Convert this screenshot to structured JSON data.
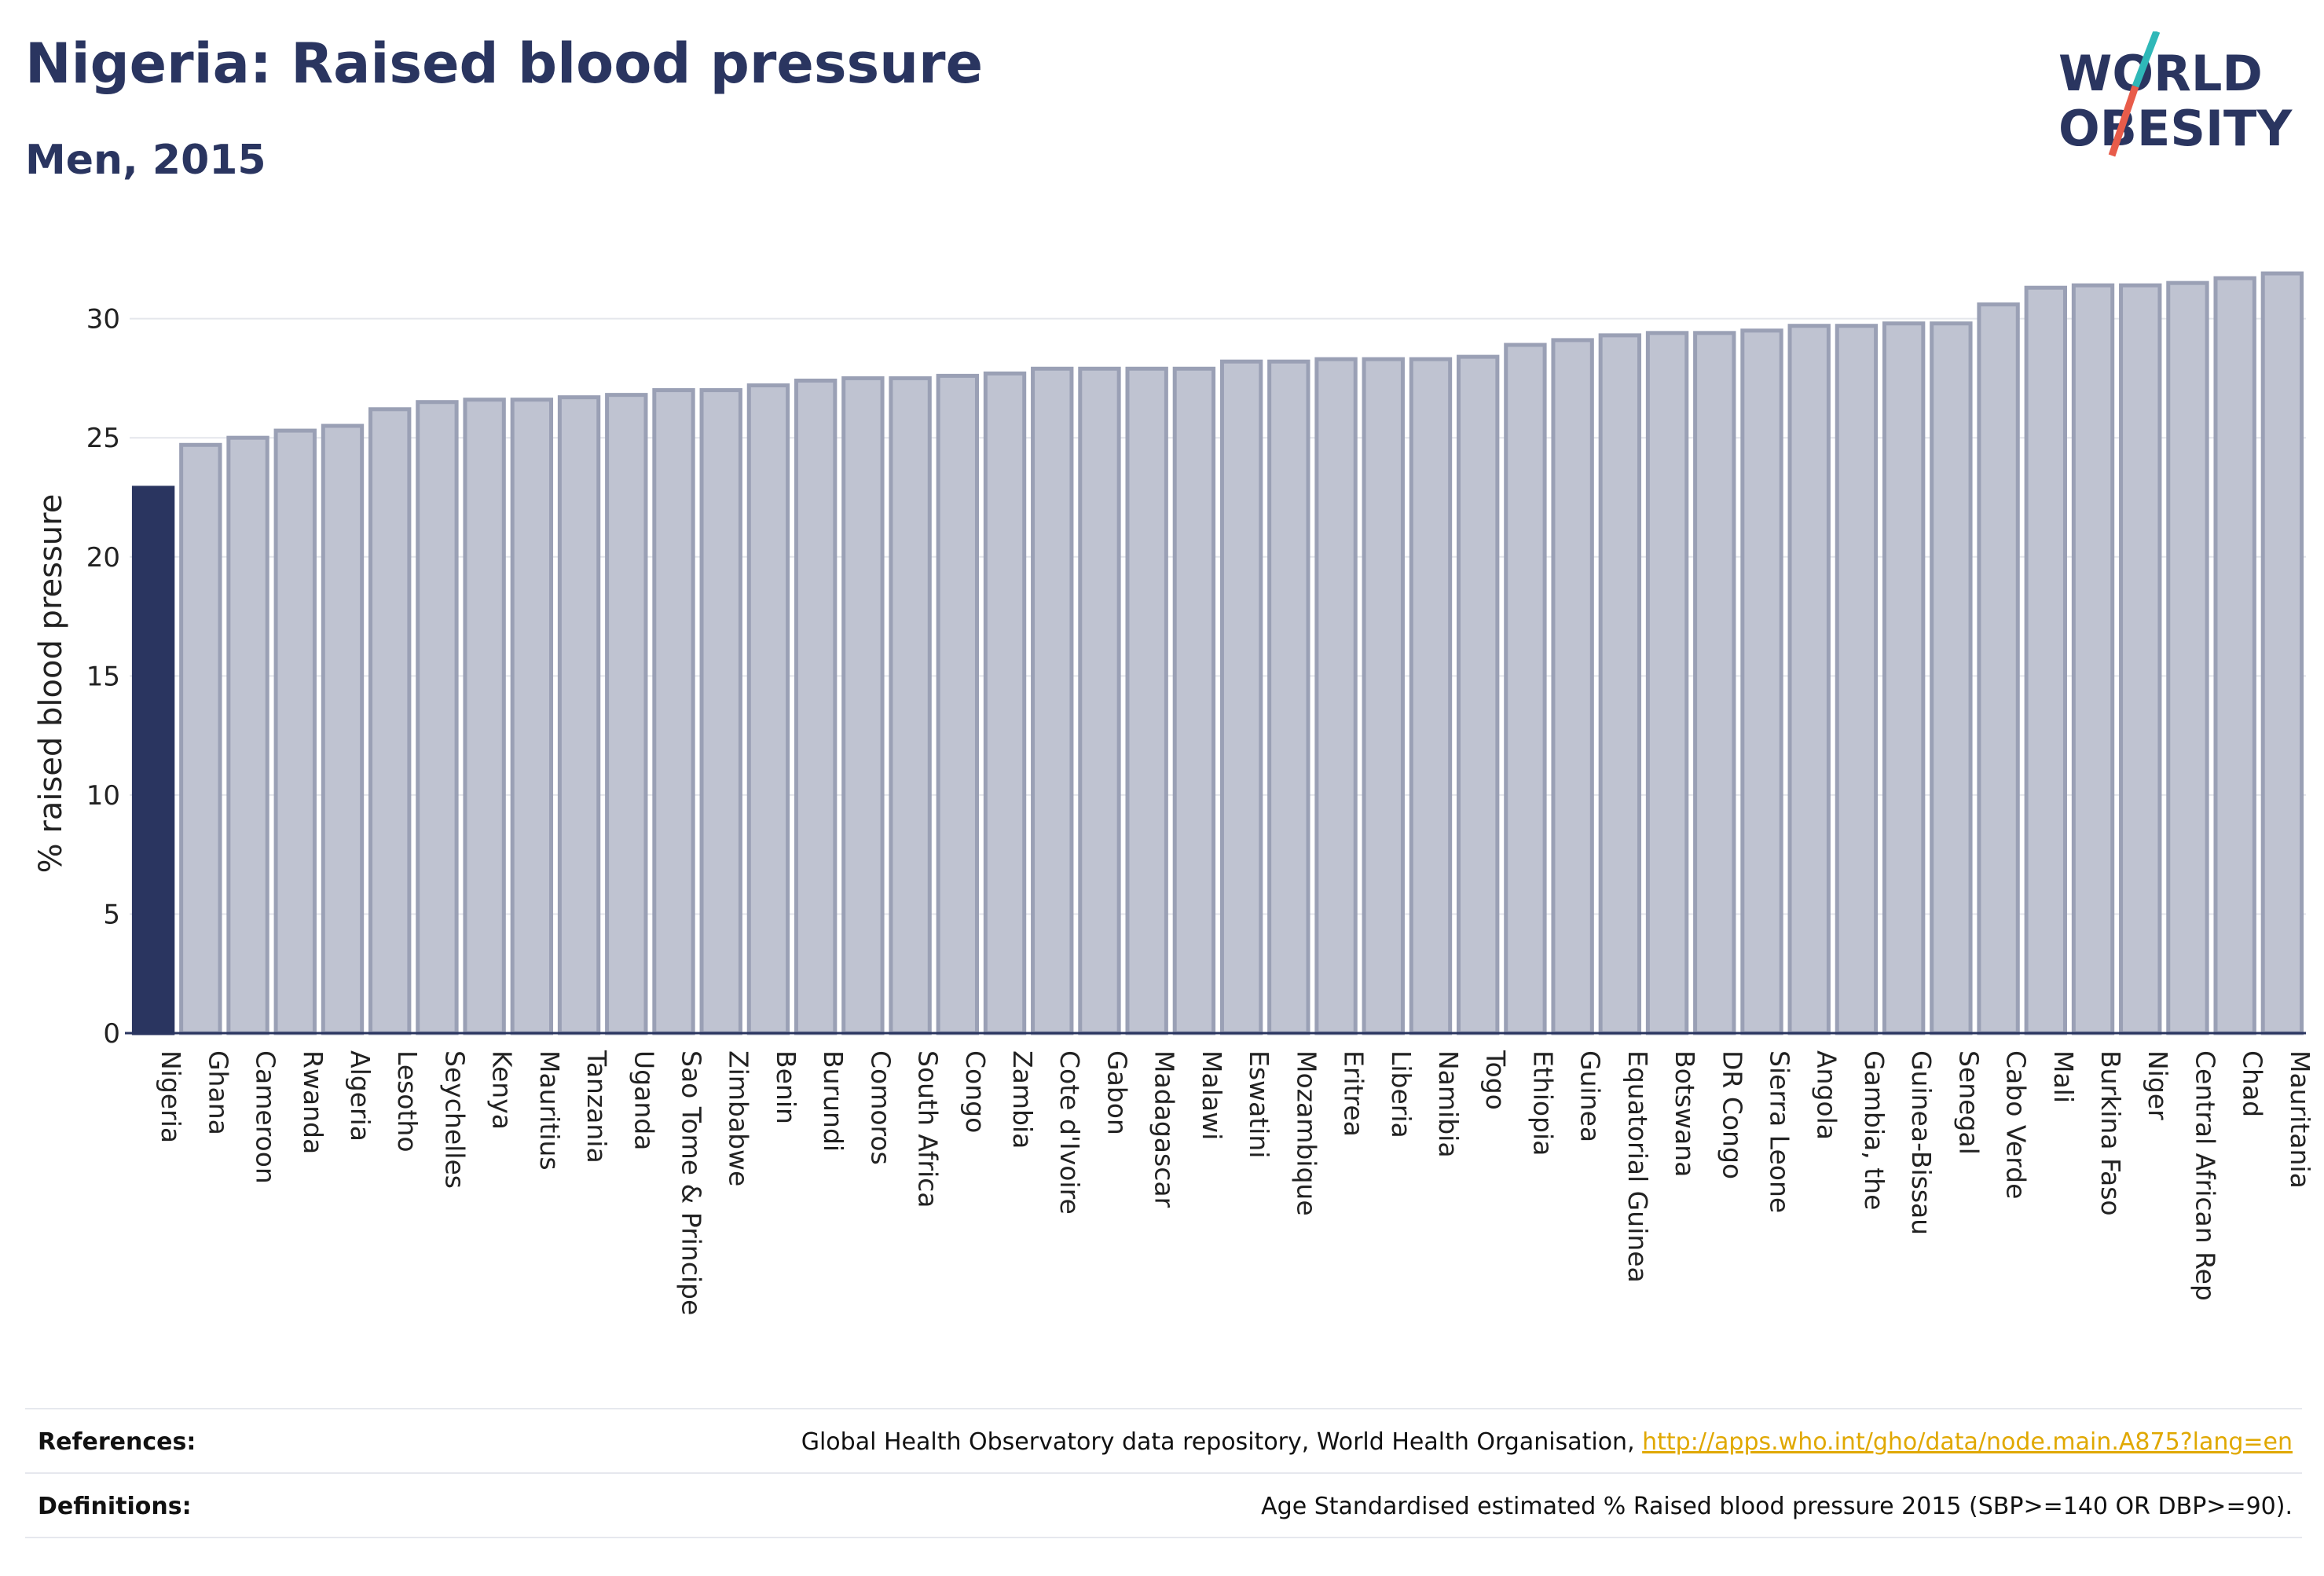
{
  "header": {
    "title": "Nigeria: Raised blood pressure",
    "subtitle": "Men, 2015",
    "logo_line1": "WORLD",
    "logo_line2": "OBESITY"
  },
  "colors": {
    "highlight_bar": "#2a3560",
    "bar_fill": "#bfc3d1",
    "bar_stroke": "#9aa0b5",
    "logo_slash_top": "#2fb8b8",
    "logo_slash_bottom": "#e85c4a",
    "link": "#e0a800"
  },
  "chart_data": {
    "type": "bar",
    "ylabel": "% raised blood pressure",
    "ylim": [
      0,
      32
    ],
    "yticks": [
      0,
      5,
      10,
      15,
      20,
      25,
      30
    ],
    "grid": true,
    "highlight": "Nigeria",
    "categories": [
      "Nigeria",
      "Ghana",
      "Cameroon",
      "Rwanda",
      "Algeria",
      "Lesotho",
      "Seychelles",
      "Kenya",
      "Mauritius",
      "Tanzania",
      "Uganda",
      "Sao Tome & Principe",
      "Zimbabwe",
      "Benin",
      "Burundi",
      "Comoros",
      "South Africa",
      "Congo",
      "Zambia",
      "Cote d'Ivoire",
      "Gabon",
      "Madagascar",
      "Malawi",
      "Eswatini",
      "Mozambique",
      "Eritrea",
      "Liberia",
      "Namibia",
      "Togo",
      "Ethiopia",
      "Guinea",
      "Equatorial Guinea",
      "Botswana",
      "DR Congo",
      "Sierra Leone",
      "Angola",
      "Gambia, the",
      "Guinea-Bissau",
      "Senegal",
      "Cabo Verde",
      "Mali",
      "Burkina Faso",
      "Niger",
      "Central African Rep",
      "Chad",
      "Mauritania"
    ],
    "values": [
      22.9,
      24.7,
      25.0,
      25.3,
      25.5,
      26.2,
      26.5,
      26.6,
      26.6,
      26.7,
      26.8,
      27.0,
      27.0,
      27.2,
      27.4,
      27.5,
      27.5,
      27.6,
      27.7,
      27.9,
      27.9,
      27.9,
      27.9,
      28.2,
      28.2,
      28.3,
      28.3,
      28.3,
      28.4,
      28.9,
      29.1,
      29.3,
      29.4,
      29.4,
      29.5,
      29.7,
      29.7,
      29.8,
      29.8,
      30.6,
      31.3,
      31.4,
      31.4,
      31.5,
      31.7,
      31.9
    ]
  },
  "footer": {
    "references_label": "References:",
    "references_text": "Global Health Observatory data repository, World Health Organisation, ",
    "references_link": "http://apps.who.int/gho/data/node.main.A875?lang=en",
    "definitions_label": "Definitions:",
    "definitions_text": "Age Standardised estimated % Raised blood pressure 2015 (SBP>=140 OR DBP>=90)."
  }
}
